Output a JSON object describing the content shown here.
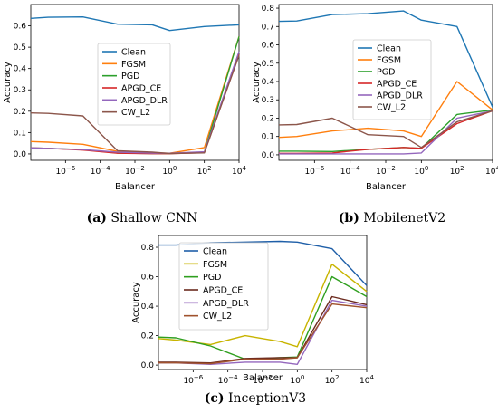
{
  "chart_data": [
    {
      "type": "line",
      "caption_letter": "(a)",
      "caption_text": " Shallow CNN",
      "xlabel": "Balancer",
      "ylabel": "Accuracy",
      "x_scale": "log",
      "x": [
        1e-08,
        1e-07,
        1e-05,
        0.001,
        0.1,
        1,
        100,
        10000
      ],
      "x_ticks": [
        {
          "v": 1e-06,
          "b": "10",
          "e": "−6"
        },
        {
          "v": 0.0001,
          "b": "10",
          "e": "−4"
        },
        {
          "v": 0.01,
          "b": "10",
          "e": "−2"
        },
        {
          "v": 1,
          "b": "10",
          "e": "0"
        },
        {
          "v": 100,
          "b": "10",
          "e": "2"
        },
        {
          "v": 10000,
          "b": "10",
          "e": "4"
        }
      ],
      "ylim": [
        -0.03,
        0.7
      ],
      "y_ticks": [
        "0.0",
        "0.1",
        "0.2",
        "0.3",
        "0.4",
        "0.5",
        "0.6"
      ],
      "legend": "center",
      "series": [
        {
          "name": "Clean",
          "color": "#1f77b4",
          "values": [
            0.635,
            0.64,
            0.642,
            0.608,
            0.605,
            0.578,
            0.597,
            0.605
          ]
        },
        {
          "name": "FGSM",
          "color": "#ff7f0e",
          "values": [
            0.058,
            0.055,
            0.045,
            0.012,
            0.005,
            0.003,
            0.03,
            0.55
          ]
        },
        {
          "name": "PGD",
          "color": "#2ca02c",
          "values": [
            0.028,
            0.026,
            0.02,
            0.004,
            0.002,
            0.002,
            0.008,
            0.55
          ]
        },
        {
          "name": "APGD_CE",
          "color": "#d62728",
          "values": [
            0.028,
            0.026,
            0.018,
            0.003,
            0.001,
            0.001,
            0.006,
            0.465
          ]
        },
        {
          "name": "APGD_DLR",
          "color": "#9467bd",
          "values": [
            0.028,
            0.026,
            0.02,
            0.008,
            0.004,
            0.003,
            0.01,
            0.48
          ]
        },
        {
          "name": "CW_L2",
          "color": "#8c564b",
          "values": [
            0.192,
            0.19,
            0.178,
            0.015,
            0.008,
            0.002,
            0.005,
            0.462
          ]
        }
      ]
    },
    {
      "type": "line",
      "caption_letter": "(b)",
      "caption_text": " MobilenetV2",
      "xlabel": "Balancer",
      "ylabel": "Accuracy",
      "x_scale": "log",
      "x": [
        1e-08,
        1e-07,
        1e-05,
        0.001,
        0.1,
        1,
        100,
        10000
      ],
      "x_ticks": [
        {
          "v": 1e-06,
          "b": "10",
          "e": "−6"
        },
        {
          "v": 0.0001,
          "b": "10",
          "e": "−4"
        },
        {
          "v": 0.01,
          "b": "10",
          "e": "−2"
        },
        {
          "v": 1,
          "b": "10",
          "e": "0"
        },
        {
          "v": 100,
          "b": "10",
          "e": "2"
        },
        {
          "v": 10000,
          "b": "10",
          "e": "4"
        }
      ],
      "ylim": [
        -0.03,
        0.82
      ],
      "y_ticks": [
        "0.0",
        "0.1",
        "0.2",
        "0.3",
        "0.4",
        "0.5",
        "0.6",
        "0.7",
        "0.8"
      ],
      "legend": "center",
      "series": [
        {
          "name": "Clean",
          "color": "#1f77b4",
          "values": [
            0.728,
            0.73,
            0.765,
            0.77,
            0.785,
            0.735,
            0.7,
            0.26
          ]
        },
        {
          "name": "FGSM",
          "color": "#ff7f0e",
          "values": [
            0.095,
            0.1,
            0.13,
            0.145,
            0.13,
            0.1,
            0.4,
            0.245
          ]
        },
        {
          "name": "PGD",
          "color": "#2ca02c",
          "values": [
            0.02,
            0.02,
            0.018,
            0.03,
            0.04,
            0.035,
            0.22,
            0.245
          ]
        },
        {
          "name": "APGD_CE",
          "color": "#d62728",
          "values": [
            0.008,
            0.008,
            0.01,
            0.03,
            0.04,
            0.035,
            0.17,
            0.24
          ]
        },
        {
          "name": "APGD_DLR",
          "color": "#9467bd",
          "values": [
            0.005,
            0.005,
            0.005,
            0.005,
            0.005,
            0.01,
            0.2,
            0.24
          ]
        },
        {
          "name": "CW_L2",
          "color": "#8c564b",
          "values": [
            0.163,
            0.165,
            0.2,
            0.11,
            0.1,
            0.04,
            0.18,
            0.24
          ]
        }
      ]
    },
    {
      "type": "line",
      "caption_letter": "(c)",
      "caption_text": " InceptionV3",
      "xlabel": "Balancer",
      "ylabel": "Accuracy",
      "x_scale": "log",
      "x": [
        1e-08,
        1e-07,
        1e-05,
        0.001,
        0.1,
        1,
        100,
        10000
      ],
      "x_ticks": [
        {
          "v": 1e-06,
          "b": "10",
          "e": "−6"
        },
        {
          "v": 0.0001,
          "b": "10",
          "e": "−4"
        },
        {
          "v": 0.01,
          "b": "10",
          "e": "−2"
        },
        {
          "v": 1,
          "b": "10",
          "e": "0"
        },
        {
          "v": 100,
          "b": "10",
          "e": "2"
        },
        {
          "v": 10000,
          "b": "10",
          "e": "4"
        }
      ],
      "ylim": [
        -0.03,
        0.88
      ],
      "y_ticks": [
        "0.0",
        "0.2",
        "0.4",
        "0.6",
        "0.8"
      ],
      "y_tick_values": [
        0,
        0.2,
        0.4,
        0.6,
        0.8
      ],
      "legend": "upper-left",
      "series": [
        {
          "name": "Clean",
          "color": "#1f5fa8",
          "values": [
            0.815,
            0.815,
            0.83,
            0.835,
            0.84,
            0.835,
            0.79,
            0.54
          ]
        },
        {
          "name": "FGSM",
          "color": "#c8b400",
          "values": [
            0.18,
            0.17,
            0.14,
            0.2,
            0.16,
            0.125,
            0.685,
            0.5
          ]
        },
        {
          "name": "PGD",
          "color": "#2f9f1f",
          "values": [
            0.19,
            0.185,
            0.13,
            0.04,
            0.05,
            0.055,
            0.6,
            0.465
          ]
        },
        {
          "name": "APGD_CE",
          "color": "#6b2a1e",
          "values": [
            0.02,
            0.02,
            0.015,
            0.045,
            0.05,
            0.05,
            0.465,
            0.41
          ]
        },
        {
          "name": "APGD_DLR",
          "color": "#9467bd",
          "values": [
            0.015,
            0.015,
            0.005,
            0.02,
            0.02,
            0.005,
            0.44,
            0.4
          ]
        },
        {
          "name": "CW_L2",
          "color": "#a0522d",
          "values": [
            0.015,
            0.015,
            0.01,
            0.04,
            0.04,
            0.05,
            0.415,
            0.39
          ]
        }
      ]
    }
  ]
}
